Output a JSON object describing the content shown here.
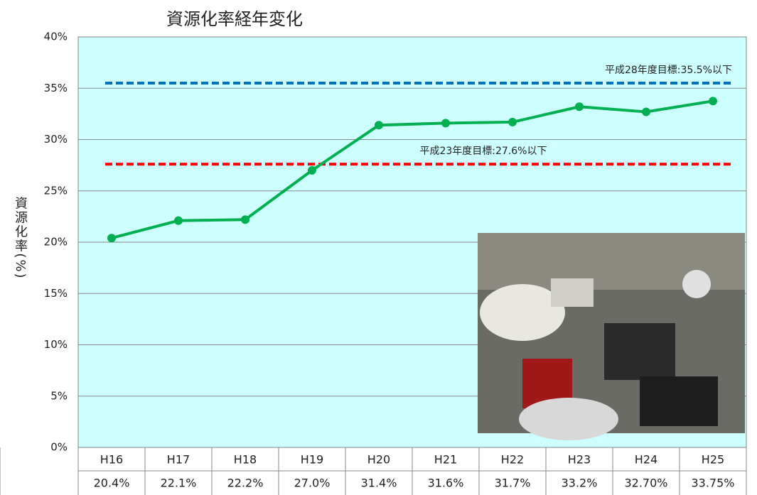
{
  "chart_data": {
    "type": "line",
    "title": "資源化率経年変化",
    "ylabel": "資源化率(%)",
    "categories": [
      "H16",
      "H17",
      "H18",
      "H19",
      "H20",
      "H21",
      "H22",
      "H23",
      "H24",
      "H25"
    ],
    "series": [
      {
        "name": "資源化率",
        "color": "#00b050",
        "values": [
          20.4,
          22.1,
          22.2,
          27.0,
          31.4,
          31.6,
          31.7,
          33.2,
          32.7,
          33.75
        ],
        "value_labels": [
          "20.4%",
          "22.1%",
          "22.2%",
          "27.0%",
          "31.4%",
          "31.6%",
          "31.7%",
          "33.2%",
          "32.70%",
          "33.75%"
        ]
      }
    ],
    "reference_lines": [
      {
        "value": 35.5,
        "label": "平成28年度目標:35.5%以下",
        "color": "#0070c0"
      },
      {
        "value": 27.6,
        "label": "平成23年度目標:27.6%以下",
        "color": "#ff0000"
      }
    ],
    "ylim": [
      0,
      40
    ],
    "yticks": [
      {
        "value": 0,
        "label": "0%"
      },
      {
        "value": 5,
        "label": "5%"
      },
      {
        "value": 10,
        "label": "10%"
      },
      {
        "value": 15,
        "label": "15%"
      },
      {
        "value": 20,
        "label": "20%"
      },
      {
        "value": 25,
        "label": "25%"
      },
      {
        "value": 30,
        "label": "30%"
      },
      {
        "value": 35,
        "label": "35%"
      },
      {
        "value": 40,
        "label": "40%"
      }
    ],
    "grid": true
  }
}
